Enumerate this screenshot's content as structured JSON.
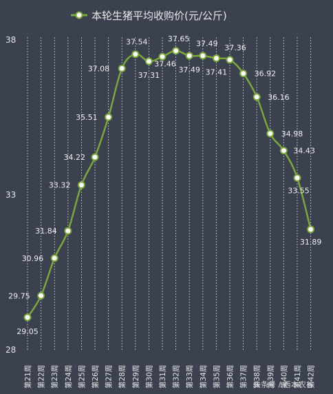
{
  "chart_data": {
    "type": "line",
    "title": "",
    "xlabel": "",
    "ylabel": "",
    "ylim": [
      28,
      38
    ],
    "yticks": [
      28,
      33,
      38
    ],
    "grid": "vertical dashed",
    "legend": {
      "position": "top-center"
    },
    "categories": [
      "第21周",
      "第22周",
      "第23周",
      "第24周",
      "第25周",
      "第26周",
      "第27周",
      "第28周",
      "第29周",
      "第30周",
      "第31周",
      "第32周",
      "第33周",
      "第34周",
      "第35周",
      "第36周",
      "第37周",
      "第38周",
      "第39周",
      "第40周",
      "第41周",
      "第42周"
    ],
    "series": [
      {
        "name": "本轮生猪平均收购价(元/公斤)",
        "values": [
          29.05,
          29.75,
          30.96,
          31.84,
          33.32,
          34.22,
          35.51,
          37.08,
          37.54,
          37.31,
          37.46,
          37.65,
          37.49,
          37.49,
          37.41,
          37.36,
          36.92,
          36.16,
          34.98,
          34.43,
          33.55,
          31.89
        ],
        "color": "#7aa83c",
        "marker_fill": "#ffffff"
      }
    ]
  },
  "watermark": "头条号 / 西本农谷"
}
